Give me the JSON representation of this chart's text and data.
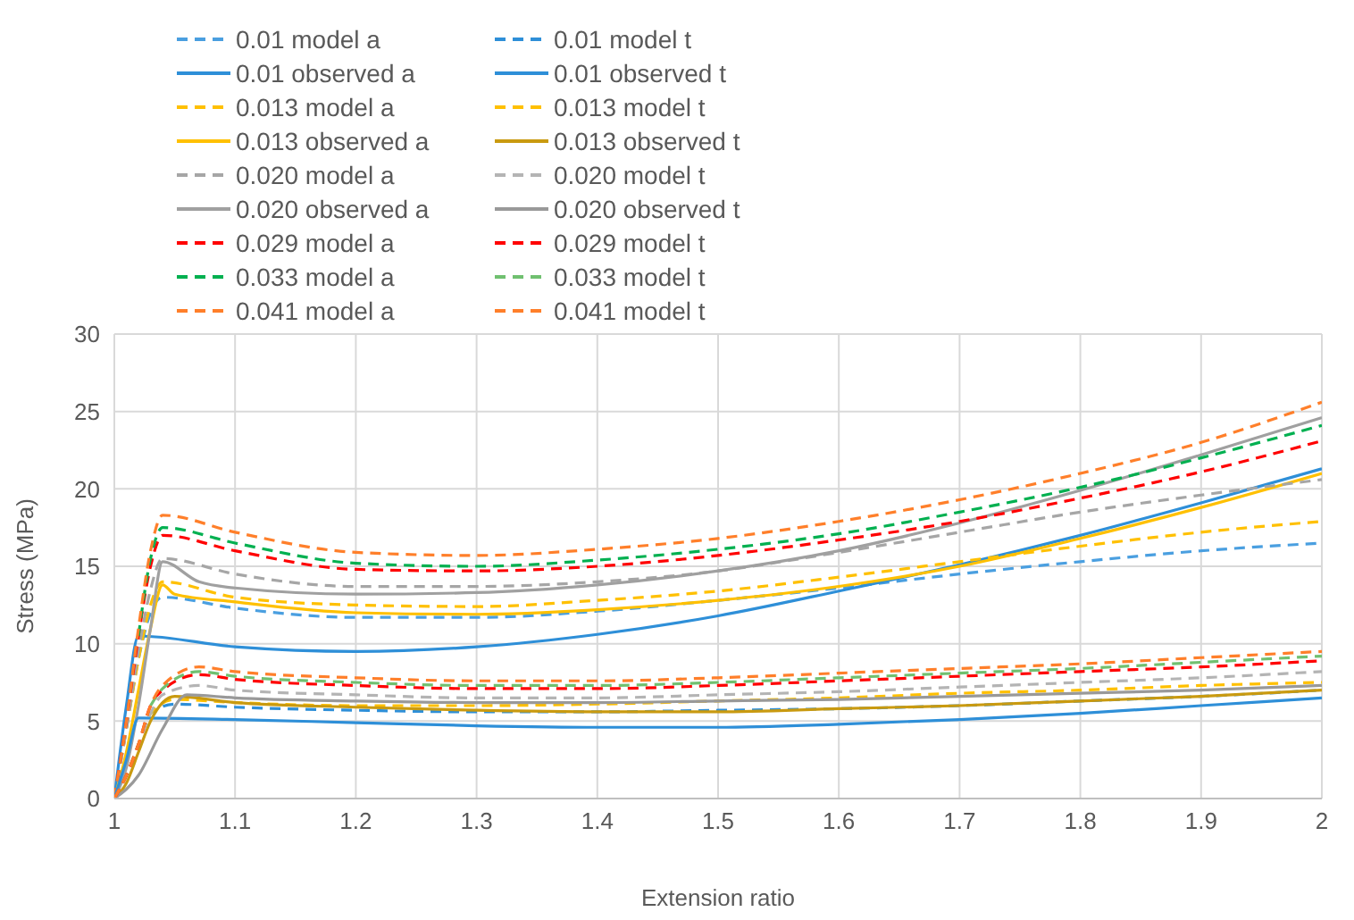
{
  "chart_data": {
    "type": "line",
    "xlabel": "Extension ratio",
    "ylabel": "Stress (MPa)",
    "xlim": [
      1,
      2
    ],
    "xticks": [
      1,
      1.1,
      1.2,
      1.3,
      1.4,
      1.5,
      1.6,
      1.7,
      1.8,
      1.9,
      2
    ],
    "ylim": [
      0,
      30
    ],
    "yticks": [
      0,
      5,
      10,
      15,
      20,
      25,
      30
    ],
    "grid": true,
    "legend": "top left",
    "series": [
      {
        "name": "0.01 model a",
        "color": "#4a9fe0",
        "line_style": "dashed",
        "x": [
          1,
          1.01,
          1.02,
          1.03,
          1.04,
          1.1,
          1.2,
          1.3,
          1.4,
          1.5,
          1.6,
          1.7,
          1.8,
          1.9,
          2
        ],
        "values": [
          0,
          4.5,
          9,
          12,
          13,
          12.3,
          11.7,
          11.7,
          12.1,
          12.8,
          13.6,
          14.5,
          15.3,
          16,
          16.5
        ]
      },
      {
        "name": "0.01 observed a",
        "color": "#2e8fd8",
        "line_style": "solid",
        "x": [
          1,
          1.01,
          1.02,
          1.1,
          1.2,
          1.3,
          1.4,
          1.5,
          1.6,
          1.7,
          1.8,
          1.9,
          2
        ],
        "values": [
          0,
          6,
          10.5,
          9.8,
          9.5,
          9.8,
          10.6,
          11.8,
          13.4,
          15.1,
          17,
          19.1,
          21.3
        ]
      },
      {
        "name": "0.013 model a",
        "color": "#ffc000",
        "line_style": "dashed",
        "x": [
          1,
          1.01,
          1.02,
          1.03,
          1.04,
          1.1,
          1.2,
          1.3,
          1.4,
          1.5,
          1.6,
          1.7,
          1.8,
          1.9,
          2
        ],
        "values": [
          0,
          4.5,
          9,
          12.5,
          14,
          13,
          12.5,
          12.4,
          12.8,
          13.4,
          14.3,
          15.3,
          16.3,
          17.2,
          17.9
        ]
      },
      {
        "name": "0.013 observed a",
        "color": "#ffc000",
        "line_style": "solid",
        "x": [
          1,
          1.01,
          1.02,
          1.03,
          1.04,
          1.05,
          1.1,
          1.2,
          1.3,
          1.4,
          1.5,
          1.6,
          1.7,
          1.8,
          1.9,
          2
        ],
        "values": [
          0,
          3,
          7,
          11,
          13.8,
          13.2,
          12.7,
          12,
          11.9,
          12.2,
          12.8,
          13.7,
          15,
          16.8,
          18.8,
          21
        ]
      },
      {
        "name": "0.020 model a",
        "color": "#a6a6a6",
        "line_style": "dashed",
        "x": [
          1,
          1.01,
          1.02,
          1.03,
          1.04,
          1.1,
          1.2,
          1.3,
          1.4,
          1.5,
          1.6,
          1.7,
          1.8,
          1.9,
          2
        ],
        "values": [
          0,
          4.5,
          9.5,
          13.5,
          15.5,
          14.5,
          13.7,
          13.7,
          14,
          14.7,
          15.9,
          17.2,
          18.5,
          19.6,
          20.6
        ]
      },
      {
        "name": "0.020 observed a",
        "color": "#a0a0a0",
        "line_style": "solid",
        "x": [
          1,
          1.01,
          1.02,
          1.03,
          1.04,
          1.07,
          1.1,
          1.2,
          1.3,
          1.4,
          1.5,
          1.6,
          1.7,
          1.8,
          1.9,
          2
        ],
        "values": [
          0,
          2,
          6,
          11,
          15.3,
          14,
          13.6,
          13.2,
          13.3,
          13.8,
          14.7,
          16,
          17.8,
          19.9,
          22.2,
          24.6
        ]
      },
      {
        "name": "0.029 model a",
        "color": "#ff0000",
        "line_style": "dashed",
        "x": [
          1,
          1.01,
          1.02,
          1.03,
          1.04,
          1.1,
          1.2,
          1.3,
          1.4,
          1.5,
          1.6,
          1.7,
          1.8,
          1.9,
          2
        ],
        "values": [
          0,
          5,
          10.5,
          15,
          17,
          16,
          14.8,
          14.7,
          15,
          15.7,
          16.7,
          17.9,
          19.4,
          21.1,
          23.1
        ]
      },
      {
        "name": "0.033 model a",
        "color": "#00b050",
        "line_style": "dashed",
        "x": [
          1.02,
          1.03,
          1.04,
          1.1,
          1.2,
          1.3,
          1.4,
          1.5,
          1.6,
          1.7,
          1.8,
          1.9,
          2
        ],
        "values": [
          10.5,
          15.5,
          17.5,
          16.5,
          15.2,
          15,
          15.4,
          16.1,
          17.1,
          18.5,
          20.1,
          22,
          24.1
        ]
      },
      {
        "name": "0.041 model a",
        "color": "#ff7f2a",
        "line_style": "dashed",
        "x": [
          1,
          1.01,
          1.02,
          1.03,
          1.04,
          1.1,
          1.2,
          1.3,
          1.4,
          1.5,
          1.6,
          1.7,
          1.8,
          1.9,
          2
        ],
        "values": [
          0,
          5,
          11,
          16,
          18.3,
          17.2,
          15.9,
          15.7,
          16.1,
          16.8,
          17.9,
          19.3,
          21,
          23,
          25.6
        ]
      },
      {
        "name": "0.01 model t",
        "color": "#2e8fd8",
        "line_style": "dashed",
        "x": [
          1,
          1.01,
          1.02,
          1.03,
          1.05,
          1.1,
          1.2,
          1.3,
          1.4,
          1.5,
          1.6,
          1.7,
          1.8,
          1.9,
          2
        ],
        "values": [
          0,
          1.5,
          3.5,
          5.5,
          6.1,
          5.9,
          5.7,
          5.6,
          5.6,
          5.7,
          5.8,
          6,
          6.3,
          6.6,
          7
        ]
      },
      {
        "name": "0.01 observed t",
        "color": "#2e8fd8",
        "line_style": "solid",
        "x": [
          1,
          1.01,
          1.02,
          1.1,
          1.2,
          1.3,
          1.4,
          1.5,
          1.6,
          1.7,
          1.8,
          1.9,
          2
        ],
        "values": [
          0,
          2.5,
          5.2,
          5.1,
          4.9,
          4.7,
          4.6,
          4.6,
          4.8,
          5.1,
          5.5,
          6,
          6.5
        ]
      },
      {
        "name": "0.013 model t",
        "color": "#ffc000",
        "line_style": "dashed",
        "x": [
          1,
          1.01,
          1.02,
          1.03,
          1.05,
          1.1,
          1.2,
          1.3,
          1.4,
          1.5,
          1.6,
          1.7,
          1.8,
          1.9,
          2
        ],
        "values": [
          0,
          1.5,
          3.5,
          5.5,
          6.4,
          6.2,
          6,
          6,
          6.1,
          6.3,
          6.5,
          6.8,
          7,
          7.3,
          7.5
        ]
      },
      {
        "name": "0.013 observed t",
        "color": "#c99a10",
        "line_style": "solid",
        "x": [
          1,
          1.01,
          1.02,
          1.03,
          1.05,
          1.1,
          1.2,
          1.3,
          1.4,
          1.5,
          1.6,
          1.7,
          1.8,
          1.9,
          2
        ],
        "values": [
          0,
          1,
          3,
          5,
          6.6,
          6.2,
          5.9,
          5.7,
          5.6,
          5.6,
          5.8,
          6,
          6.3,
          6.6,
          7
        ]
      },
      {
        "name": "0.020 model t",
        "color": "#b4b4b4",
        "line_style": "dashed",
        "x": [
          1,
          1.01,
          1.02,
          1.03,
          1.04,
          1.07,
          1.1,
          1.2,
          1.3,
          1.4,
          1.5,
          1.6,
          1.7,
          1.8,
          1.9,
          2
        ],
        "values": [
          0,
          1.5,
          3.5,
          5.5,
          6.7,
          7.3,
          7,
          6.7,
          6.5,
          6.5,
          6.7,
          6.9,
          7.2,
          7.5,
          7.8,
          8.2
        ]
      },
      {
        "name": "0.020 observed t",
        "color": "#999999",
        "line_style": "solid",
        "x": [
          1,
          1.02,
          1.04,
          1.06,
          1.1,
          1.2,
          1.3,
          1.4,
          1.5,
          1.6,
          1.7,
          1.8,
          1.9,
          2
        ],
        "values": [
          0,
          1.5,
          4.5,
          6.7,
          6.5,
          6.3,
          6.2,
          6.2,
          6.3,
          6.4,
          6.6,
          6.8,
          7,
          7.3
        ]
      },
      {
        "name": "0.029 model t",
        "color": "#ff0000",
        "line_style": "dashed",
        "x": [
          1,
          1.01,
          1.02,
          1.03,
          1.04,
          1.07,
          1.1,
          1.2,
          1.3,
          1.4,
          1.5,
          1.6,
          1.7,
          1.8,
          1.9,
          2
        ],
        "values": [
          0,
          1.5,
          3.5,
          6,
          7,
          8,
          7.7,
          7.3,
          7.1,
          7.1,
          7.3,
          7.6,
          7.9,
          8.2,
          8.5,
          8.9
        ]
      },
      {
        "name": "0.033 model t",
        "color": "#70c070",
        "line_style": "dashed",
        "x": [
          1.03,
          1.04,
          1.07,
          1.1,
          1.2,
          1.3,
          1.4,
          1.5,
          1.6,
          1.7,
          1.8,
          1.9,
          2
        ],
        "values": [
          6,
          7.1,
          8.2,
          7.9,
          7.5,
          7.3,
          7.3,
          7.5,
          7.8,
          8.1,
          8.4,
          8.8,
          9.2
        ]
      },
      {
        "name": "0.041 model t",
        "color": "#ff7f2a",
        "line_style": "dashed",
        "x": [
          1,
          1.01,
          1.02,
          1.03,
          1.04,
          1.07,
          1.1,
          1.2,
          1.3,
          1.4,
          1.5,
          1.6,
          1.7,
          1.8,
          1.9,
          2
        ],
        "values": [
          0,
          1.5,
          3.5,
          6,
          7.3,
          8.5,
          8.2,
          7.8,
          7.6,
          7.6,
          7.8,
          8.1,
          8.4,
          8.7,
          9.1,
          9.5
        ]
      }
    ]
  }
}
